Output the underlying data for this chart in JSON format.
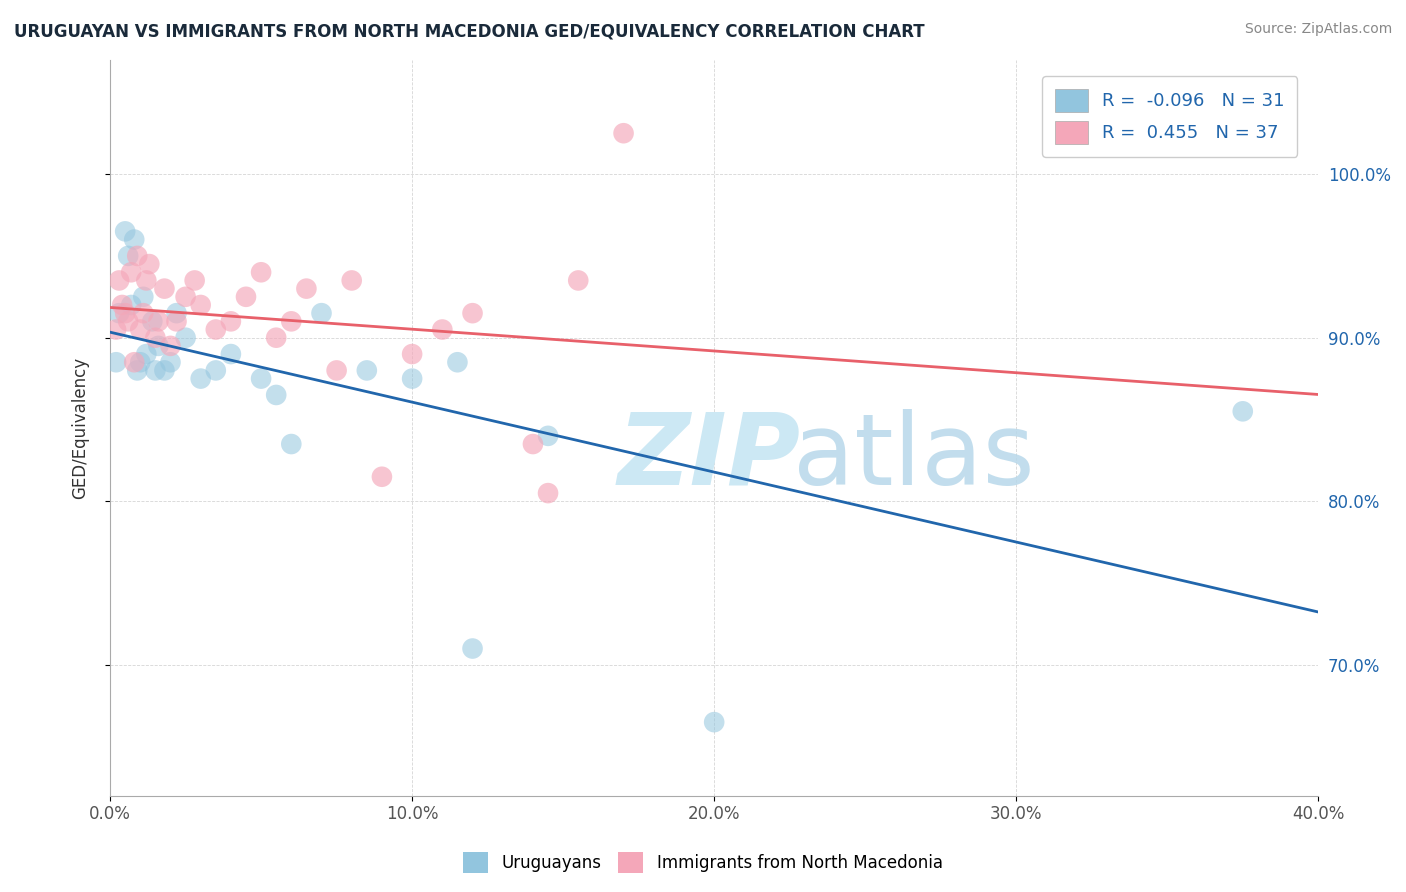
{
  "title": "URUGUAYAN VS IMMIGRANTS FROM NORTH MACEDONIA GED/EQUIVALENCY CORRELATION CHART",
  "source": "Source: ZipAtlas.com",
  "ylabel": "GED/Equivalency",
  "legend_label_blue": "Uruguayans",
  "legend_label_pink": "Immigrants from North Macedonia",
  "r_blue": -0.096,
  "n_blue": 31,
  "r_pink": 0.455,
  "n_pink": 37,
  "color_blue": "#92c5de",
  "color_pink": "#f4a7b9",
  "color_blue_line": "#2166ac",
  "color_pink_line": "#e8606a",
  "xlim": [
    0.0,
    40.0
  ],
  "ylim": [
    62.0,
    107.0
  ],
  "xticks": [
    0.0,
    10.0,
    20.0,
    30.0,
    40.0
  ],
  "yticks": [
    70.0,
    80.0,
    90.0,
    100.0
  ],
  "xticklabels": [
    "0.0%",
    "",
    "",
    "",
    ""
  ],
  "xticklabels_major": [
    "0.0%",
    "10.0%",
    "20.0%",
    "30.0%",
    "40.0%"
  ],
  "yticklabels": [
    "70.0%",
    "80.0%",
    "90.0%",
    "100.0%"
  ],
  "blue_x": [
    0.2,
    0.3,
    0.5,
    0.6,
    0.7,
    0.8,
    0.9,
    1.0,
    1.1,
    1.2,
    1.4,
    1.5,
    1.6,
    1.8,
    2.0,
    2.2,
    2.5,
    3.0,
    3.5,
    4.0,
    5.0,
    5.5,
    6.0,
    7.0,
    8.5,
    10.0,
    11.5,
    12.0,
    14.5,
    20.0,
    37.5
  ],
  "blue_y": [
    88.5,
    91.5,
    96.5,
    95.0,
    92.0,
    96.0,
    88.0,
    88.5,
    92.5,
    89.0,
    91.0,
    88.0,
    89.5,
    88.0,
    88.5,
    91.5,
    90.0,
    87.5,
    88.0,
    89.0,
    87.5,
    86.5,
    83.5,
    91.5,
    88.0,
    87.5,
    88.5,
    71.0,
    84.0,
    66.5,
    85.5
  ],
  "pink_x": [
    0.2,
    0.3,
    0.4,
    0.5,
    0.6,
    0.7,
    0.8,
    0.9,
    1.0,
    1.1,
    1.2,
    1.3,
    1.5,
    1.6,
    1.8,
    2.0,
    2.2,
    2.5,
    2.8,
    3.0,
    3.5,
    4.0,
    4.5,
    5.0,
    5.5,
    6.0,
    6.5,
    7.5,
    8.0,
    9.0,
    10.0,
    11.0,
    12.0,
    14.0,
    14.5,
    15.5,
    17.0
  ],
  "pink_y": [
    90.5,
    93.5,
    92.0,
    91.5,
    91.0,
    94.0,
    88.5,
    95.0,
    90.5,
    91.5,
    93.5,
    94.5,
    90.0,
    91.0,
    93.0,
    89.5,
    91.0,
    92.5,
    93.5,
    92.0,
    90.5,
    91.0,
    92.5,
    94.0,
    90.0,
    91.0,
    93.0,
    88.0,
    93.5,
    81.5,
    89.0,
    90.5,
    91.5,
    83.5,
    80.5,
    93.5,
    102.5
  ],
  "background_color": "#ffffff",
  "grid_color": "#cccccc",
  "title_color": "#1a2a3a",
  "source_color": "#888888",
  "tick_color_x": "#555555",
  "tick_color_y": "#2166ac"
}
